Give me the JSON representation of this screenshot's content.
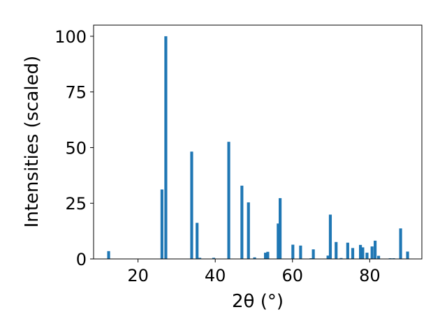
{
  "chart_data": {
    "type": "bar",
    "xlabel": "2θ (°)",
    "ylabel": "Intensities (scaled)",
    "xlim": [
      8.5,
      93.5
    ],
    "ylim": [
      0,
      105
    ],
    "xticks": [
      20,
      40,
      60,
      80
    ],
    "yticks": [
      0,
      25,
      50,
      75,
      100
    ],
    "grid": false,
    "color": "#1f77b4",
    "bar_width_deg": 0.75,
    "bars": [
      {
        "x": 12.4,
        "y": 3.5
      },
      {
        "x": 26.2,
        "y": 31.2
      },
      {
        "x": 27.2,
        "y": 100.0
      },
      {
        "x": 33.9,
        "y": 48.2
      },
      {
        "x": 35.3,
        "y": 16.2
      },
      {
        "x": 36.0,
        "y": 0.5
      },
      {
        "x": 39.6,
        "y": 0.5
      },
      {
        "x": 43.5,
        "y": 52.6
      },
      {
        "x": 46.9,
        "y": 32.9
      },
      {
        "x": 48.6,
        "y": 25.4
      },
      {
        "x": 50.2,
        "y": 0.7
      },
      {
        "x": 53.0,
        "y": 2.8
      },
      {
        "x": 53.6,
        "y": 3.2
      },
      {
        "x": 56.3,
        "y": 15.9
      },
      {
        "x": 56.8,
        "y": 27.3
      },
      {
        "x": 60.1,
        "y": 6.4
      },
      {
        "x": 62.1,
        "y": 6.0
      },
      {
        "x": 64.8,
        "y": 0.3
      },
      {
        "x": 65.4,
        "y": 4.3
      },
      {
        "x": 69.2,
        "y": 1.5
      },
      {
        "x": 69.8,
        "y": 19.9
      },
      {
        "x": 71.3,
        "y": 7.6
      },
      {
        "x": 72.6,
        "y": 0.4
      },
      {
        "x": 74.3,
        "y": 7.3
      },
      {
        "x": 75.6,
        "y": 4.9
      },
      {
        "x": 77.6,
        "y": 6.3
      },
      {
        "x": 78.2,
        "y": 5.2
      },
      {
        "x": 79.3,
        "y": 2.8
      },
      {
        "x": 80.6,
        "y": 5.6
      },
      {
        "x": 81.4,
        "y": 8.2
      },
      {
        "x": 82.3,
        "y": 1.4
      },
      {
        "x": 85.3,
        "y": 0.3
      },
      {
        "x": 86.2,
        "y": 0.3
      },
      {
        "x": 88.0,
        "y": 13.7
      },
      {
        "x": 89.8,
        "y": 3.3
      }
    ]
  }
}
